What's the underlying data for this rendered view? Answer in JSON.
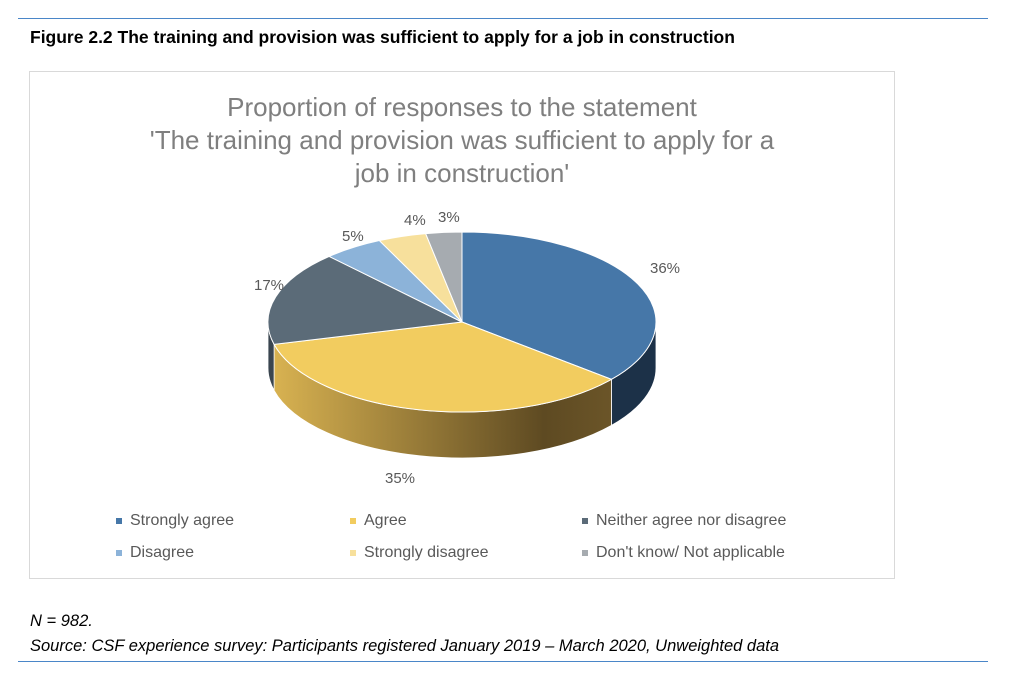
{
  "figure_title": "Figure 2.2 The training and provision was sufficient to apply for a job in construction",
  "chart_data": {
    "type": "pie",
    "title_lines": [
      "Proportion of responses to the statement",
      "'The training and provision was sufficient to apply for a",
      "job in construction'"
    ],
    "categories": [
      "Strongly agree",
      "Agree",
      "Neither agree nor disagree",
      "Disagree",
      "Strongly disagree",
      "Don't know/ Not applicable"
    ],
    "values": [
      36,
      35,
      17,
      5,
      4,
      3
    ],
    "labels": [
      "36%",
      "35%",
      "17%",
      "5%",
      "4%",
      "3%"
    ],
    "colors": [
      "#4677a8",
      "#f2cc5f",
      "#5b6b78",
      "#8cb3d9",
      "#f7e09c",
      "#a6abb0"
    ],
    "legend_position": "bottom"
  },
  "notes": {
    "n": "N = 982.",
    "source": "Source: CSF experience survey: Participants registered January 2019 – March 2020, Unweighted data"
  }
}
